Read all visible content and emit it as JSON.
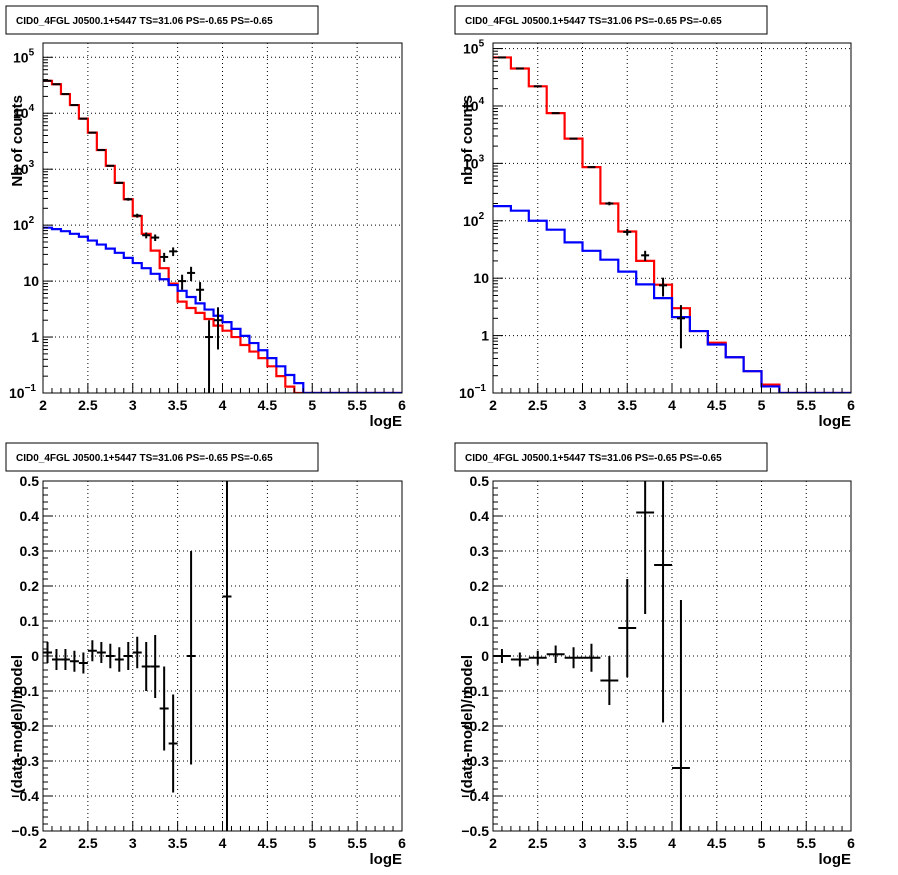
{
  "colors": {
    "data": "#000000",
    "total_model": "#ff0000",
    "source_model": "#0000ff"
  },
  "chart_data": [
    {
      "id": "p1",
      "type": "line",
      "title": "CID0_4FGL J0500.1+5447 TS=31.06 PS=-0.65 PS=-0.65",
      "xlabel": "logE",
      "ylabel": "Nb of counts",
      "log_y": true,
      "grid": true,
      "xlim": [
        2,
        6
      ],
      "ylim": [
        0.1,
        180000
      ],
      "xticks": [
        "2",
        "2.5",
        "3",
        "3.5",
        "4",
        "4.5",
        "5",
        "5.5",
        "6"
      ],
      "yticks": [
        {
          "v": 0.1,
          "b": "10",
          "e": "−1"
        },
        {
          "v": 1,
          "b": "1",
          "e": ""
        },
        {
          "v": 10,
          "b": "10",
          "e": ""
        },
        {
          "v": 100,
          "b": "10",
          "e": "2"
        },
        {
          "v": 1000,
          "b": "10",
          "e": "3"
        },
        {
          "v": 10000,
          "b": "10",
          "e": "4"
        },
        {
          "v": 100000,
          "b": "10",
          "e": "5"
        }
      ],
      "bin_edges": [
        2,
        2.1,
        2.2,
        2.3,
        2.4,
        2.5,
        2.6,
        2.7,
        2.8,
        2.9,
        3,
        3.1,
        3.2,
        3.3,
        3.4,
        3.5,
        3.6,
        3.7,
        3.8,
        3.9,
        4,
        4.1,
        4.2,
        4.3,
        4.4,
        4.5,
        4.6,
        4.7,
        4.8,
        4.9,
        5,
        5.1,
        5.2,
        5.3,
        5.4,
        5.5,
        5.6,
        5.7,
        5.8,
        5.9,
        6
      ],
      "series": [
        {
          "role": "total_model",
          "values": [
            38000,
            33000,
            22000,
            14000,
            8000,
            4500,
            2200,
            1150,
            570,
            290,
            145,
            70,
            35,
            17,
            9,
            4.3,
            3.3,
            2.7,
            2.1,
            1.6,
            1.3,
            1.0,
            0.72,
            0.55,
            0.42,
            0.3,
            0.2,
            0.13,
            0.1,
            0.1,
            0.1,
            0.1,
            0.1,
            0.1,
            0.1,
            0.1,
            0.1,
            0.1,
            0.1,
            0.1
          ]
        },
        {
          "role": "source_model",
          "values": [
            90,
            85,
            78,
            70,
            62,
            53,
            45,
            38,
            32,
            26,
            21,
            17,
            13.5,
            10.8,
            8.5,
            6.7,
            5.2,
            4.0,
            3.1,
            2.4,
            1.85,
            1.4,
            1.05,
            0.78,
            0.58,
            0.42,
            0.3,
            0.21,
            0.15,
            0.1,
            0.1,
            0.1,
            0.1,
            0.1,
            0.1,
            0.1,
            0.1,
            0.1,
            0.1,
            0.1
          ]
        },
        {
          "role": "data",
          "points": [
            {
              "x": 2.05,
              "y": 38000,
              "lo": 37500,
              "hi": 38500
            },
            {
              "x": 2.15,
              "y": 33000,
              "lo": 32600,
              "hi": 33400
            },
            {
              "x": 2.25,
              "y": 22000,
              "lo": 21700,
              "hi": 22300
            },
            {
              "x": 2.35,
              "y": 14000,
              "lo": 13800,
              "hi": 14200
            },
            {
              "x": 2.45,
              "y": 8000,
              "lo": 7900,
              "hi": 8100
            },
            {
              "x": 2.55,
              "y": 4500,
              "lo": 4430,
              "hi": 4570
            },
            {
              "x": 2.65,
              "y": 2200,
              "lo": 2150,
              "hi": 2250
            },
            {
              "x": 2.75,
              "y": 1150,
              "lo": 1115,
              "hi": 1185
            },
            {
              "x": 2.85,
              "y": 570,
              "lo": 545,
              "hi": 595
            },
            {
              "x": 2.95,
              "y": 290,
              "lo": 273,
              "hi": 307
            },
            {
              "x": 3.05,
              "y": 148,
              "lo": 136,
              "hi": 160
            },
            {
              "x": 3.15,
              "y": 66,
              "lo": 58,
              "hi": 74
            },
            {
              "x": 3.25,
              "y": 60,
              "lo": 52,
              "hi": 68
            },
            {
              "x": 3.35,
              "y": 27,
              "lo": 22,
              "hi": 32
            },
            {
              "x": 3.45,
              "y": 34,
              "lo": 28,
              "hi": 40
            },
            {
              "x": 3.55,
              "y": 10,
              "lo": 7,
              "hi": 13
            },
            {
              "x": 3.65,
              "y": 14,
              "lo": 10,
              "hi": 18
            },
            {
              "x": 3.75,
              "y": 7,
              "lo": 4.4,
              "hi": 9.6
            },
            {
              "x": 3.85,
              "y": 1,
              "lo": 0.1,
              "hi": 2
            },
            {
              "x": 3.95,
              "y": 2,
              "lo": 0.6,
              "hi": 3.4
            }
          ]
        }
      ]
    },
    {
      "id": "p2",
      "type": "line",
      "title": "CID0_4FGL J0500.1+5447 TS=31.06 PS=-0.65 PS=-0.65",
      "xlabel": "logE",
      "ylabel": "nb of counts",
      "log_y": true,
      "grid": true,
      "xlim": [
        2,
        6
      ],
      "ylim": [
        0.1,
        125000
      ],
      "xticks": [
        "2",
        "2.5",
        "3",
        "3.5",
        "4",
        "4.5",
        "5",
        "5.5",
        "6"
      ],
      "yticks": [
        {
          "v": 0.1,
          "b": "10",
          "e": "−1"
        },
        {
          "v": 1,
          "b": "1",
          "e": ""
        },
        {
          "v": 10,
          "b": "10",
          "e": ""
        },
        {
          "v": 100,
          "b": "10",
          "e": "2"
        },
        {
          "v": 1000,
          "b": "10",
          "e": "3"
        },
        {
          "v": 10000,
          "b": "10",
          "e": "4"
        },
        {
          "v": 100000,
          "b": "10",
          "e": "5"
        }
      ],
      "bin_edges": [
        2,
        2.2,
        2.4,
        2.6,
        2.8,
        3,
        3.2,
        3.4,
        3.6,
        3.8,
        4,
        4.2,
        4.4,
        4.6,
        4.8,
        5,
        5.2,
        5.4,
        5.6,
        5.8,
        6
      ],
      "series": [
        {
          "role": "total_model",
          "values": [
            70000,
            45000,
            22000,
            7500,
            2700,
            860,
            200,
            65,
            20,
            7.7,
            3.0,
            1.2,
            0.75,
            0.42,
            0.24,
            0.14,
            0.1,
            0.1,
            0.1,
            0.1
          ]
        },
        {
          "role": "source_model",
          "values": [
            180,
            150,
            100,
            70,
            42,
            30,
            21,
            13,
            7.8,
            4.5,
            2.1,
            1.2,
            0.7,
            0.42,
            0.24,
            0.13,
            0.1,
            0.1,
            0.1,
            0.1
          ]
        },
        {
          "role": "data",
          "points": [
            {
              "x": 2.1,
              "y": 70000,
              "lo": 69700,
              "hi": 70300
            },
            {
              "x": 2.3,
              "y": 45000,
              "lo": 44800,
              "hi": 45200
            },
            {
              "x": 2.5,
              "y": 22000,
              "lo": 21850,
              "hi": 22150
            },
            {
              "x": 2.7,
              "y": 7500,
              "lo": 7410,
              "hi": 7590
            },
            {
              "x": 2.9,
              "y": 2700,
              "lo": 2650,
              "hi": 2750
            },
            {
              "x": 3.1,
              "y": 860,
              "lo": 830,
              "hi": 890
            },
            {
              "x": 3.3,
              "y": 200,
              "lo": 186,
              "hi": 214
            },
            {
              "x": 3.5,
              "y": 64,
              "lo": 56,
              "hi": 72
            },
            {
              "x": 3.7,
              "y": 25,
              "lo": 20,
              "hi": 30
            },
            {
              "x": 3.9,
              "y": 7.5,
              "lo": 4.8,
              "hi": 10.2
            },
            {
              "x": 4.1,
              "y": 2,
              "lo": 0.6,
              "hi": 3.4
            }
          ]
        }
      ]
    },
    {
      "id": "p3",
      "type": "scatter",
      "title": "CID0_4FGL J0500.1+5447 TS=31.06 PS=-0.65 PS=-0.65",
      "xlabel": "logE",
      "ylabel": "(data-model)/model",
      "log_y": false,
      "grid": true,
      "xlim": [
        2,
        6
      ],
      "ylim": [
        -0.5,
        0.5
      ],
      "xticks": [
        "2",
        "2.5",
        "3",
        "3.5",
        "4",
        "4.5",
        "5",
        "5.5",
        "6"
      ],
      "yticks": [
        {
          "v": -0.5,
          "t": "−0.5"
        },
        {
          "v": -0.4,
          "t": "−0.4"
        },
        {
          "v": -0.3,
          "t": "−0.3"
        },
        {
          "v": -0.2,
          "t": "−0.2"
        },
        {
          "v": -0.1,
          "t": "−0.1"
        },
        {
          "v": 0,
          "t": "0"
        },
        {
          "v": 0.1,
          "t": "0.1"
        },
        {
          "v": 0.2,
          "t": "0.2"
        },
        {
          "v": 0.3,
          "t": "0.3"
        },
        {
          "v": 0.4,
          "t": "0.4"
        },
        {
          "v": 0.5,
          "t": "0.5"
        }
      ],
      "half_width": 0.05,
      "points": [
        {
          "x": 2.05,
          "y": 0.01,
          "lo": -0.02,
          "hi": 0.04
        },
        {
          "x": 2.15,
          "y": -0.01,
          "lo": -0.04,
          "hi": 0.02
        },
        {
          "x": 2.25,
          "y": -0.01,
          "lo": -0.04,
          "hi": 0.02
        },
        {
          "x": 2.35,
          "y": -0.015,
          "lo": -0.045,
          "hi": 0.015
        },
        {
          "x": 2.45,
          "y": -0.02,
          "lo": -0.05,
          "hi": 0.01
        },
        {
          "x": 2.55,
          "y": 0.015,
          "lo": -0.015,
          "hi": 0.045
        },
        {
          "x": 2.65,
          "y": 0.01,
          "lo": -0.02,
          "hi": 0.04
        },
        {
          "x": 2.75,
          "y": 0.0,
          "lo": -0.035,
          "hi": 0.035
        },
        {
          "x": 2.85,
          "y": -0.01,
          "lo": -0.045,
          "hi": 0.025
        },
        {
          "x": 2.95,
          "y": 0.0,
          "lo": -0.04,
          "hi": 0.04
        },
        {
          "x": 3.05,
          "y": 0.01,
          "lo": -0.035,
          "hi": 0.055
        },
        {
          "x": 3.15,
          "y": -0.03,
          "lo": -0.1,
          "hi": 0.04
        },
        {
          "x": 3.25,
          "y": -0.03,
          "lo": -0.12,
          "hi": 0.06
        },
        {
          "x": 3.35,
          "y": -0.15,
          "lo": -0.27,
          "hi": -0.03
        },
        {
          "x": 3.45,
          "y": -0.25,
          "lo": -0.39,
          "hi": -0.11
        },
        {
          "x": 3.65,
          "y": 0.0,
          "lo": -0.31,
          "hi": 0.3
        },
        {
          "x": 4.05,
          "y": 0.17,
          "lo": -0.5,
          "hi": 0.5
        }
      ]
    },
    {
      "id": "p4",
      "type": "scatter",
      "title": "CID0_4FGL J0500.1+5447 TS=31.06 PS=-0.65 PS=-0.65",
      "xlabel": "logE",
      "ylabel": "(data-model)/model",
      "log_y": false,
      "grid": true,
      "xlim": [
        2,
        6
      ],
      "ylim": [
        -0.5,
        0.5
      ],
      "xticks": [
        "2",
        "2.5",
        "3",
        "3.5",
        "4",
        "4.5",
        "5",
        "5.5",
        "6"
      ],
      "yticks": [
        {
          "v": -0.5,
          "t": "−0.5"
        },
        {
          "v": -0.4,
          "t": "−0.4"
        },
        {
          "v": -0.3,
          "t": "−0.3"
        },
        {
          "v": -0.2,
          "t": "−0.2"
        },
        {
          "v": -0.1,
          "t": "−0.1"
        },
        {
          "v": 0,
          "t": "0"
        },
        {
          "v": 0.1,
          "t": "0.1"
        },
        {
          "v": 0.2,
          "t": "0.2"
        },
        {
          "v": 0.3,
          "t": "0.3"
        },
        {
          "v": 0.4,
          "t": "0.4"
        },
        {
          "v": 0.5,
          "t": "0.5"
        }
      ],
      "half_width": 0.1,
      "points": [
        {
          "x": 2.1,
          "y": 0.0,
          "lo": -0.02,
          "hi": 0.02
        },
        {
          "x": 2.3,
          "y": -0.01,
          "lo": -0.03,
          "hi": 0.01
        },
        {
          "x": 2.5,
          "y": -0.005,
          "lo": -0.025,
          "hi": 0.015
        },
        {
          "x": 2.7,
          "y": 0.005,
          "lo": -0.02,
          "hi": 0.03
        },
        {
          "x": 2.9,
          "y": -0.005,
          "lo": -0.035,
          "hi": 0.025
        },
        {
          "x": 3.1,
          "y": -0.005,
          "lo": -0.045,
          "hi": 0.035
        },
        {
          "x": 3.3,
          "y": -0.07,
          "lo": -0.14,
          "hi": 0.0
        },
        {
          "x": 3.5,
          "y": 0.08,
          "lo": -0.06,
          "hi": 0.22
        },
        {
          "x": 3.7,
          "y": 0.41,
          "lo": 0.12,
          "hi": 0.5
        },
        {
          "x": 3.9,
          "y": 0.26,
          "lo": -0.19,
          "hi": 0.5
        },
        {
          "x": 4.1,
          "y": -0.32,
          "lo": -0.5,
          "hi": 0.16
        }
      ]
    }
  ]
}
